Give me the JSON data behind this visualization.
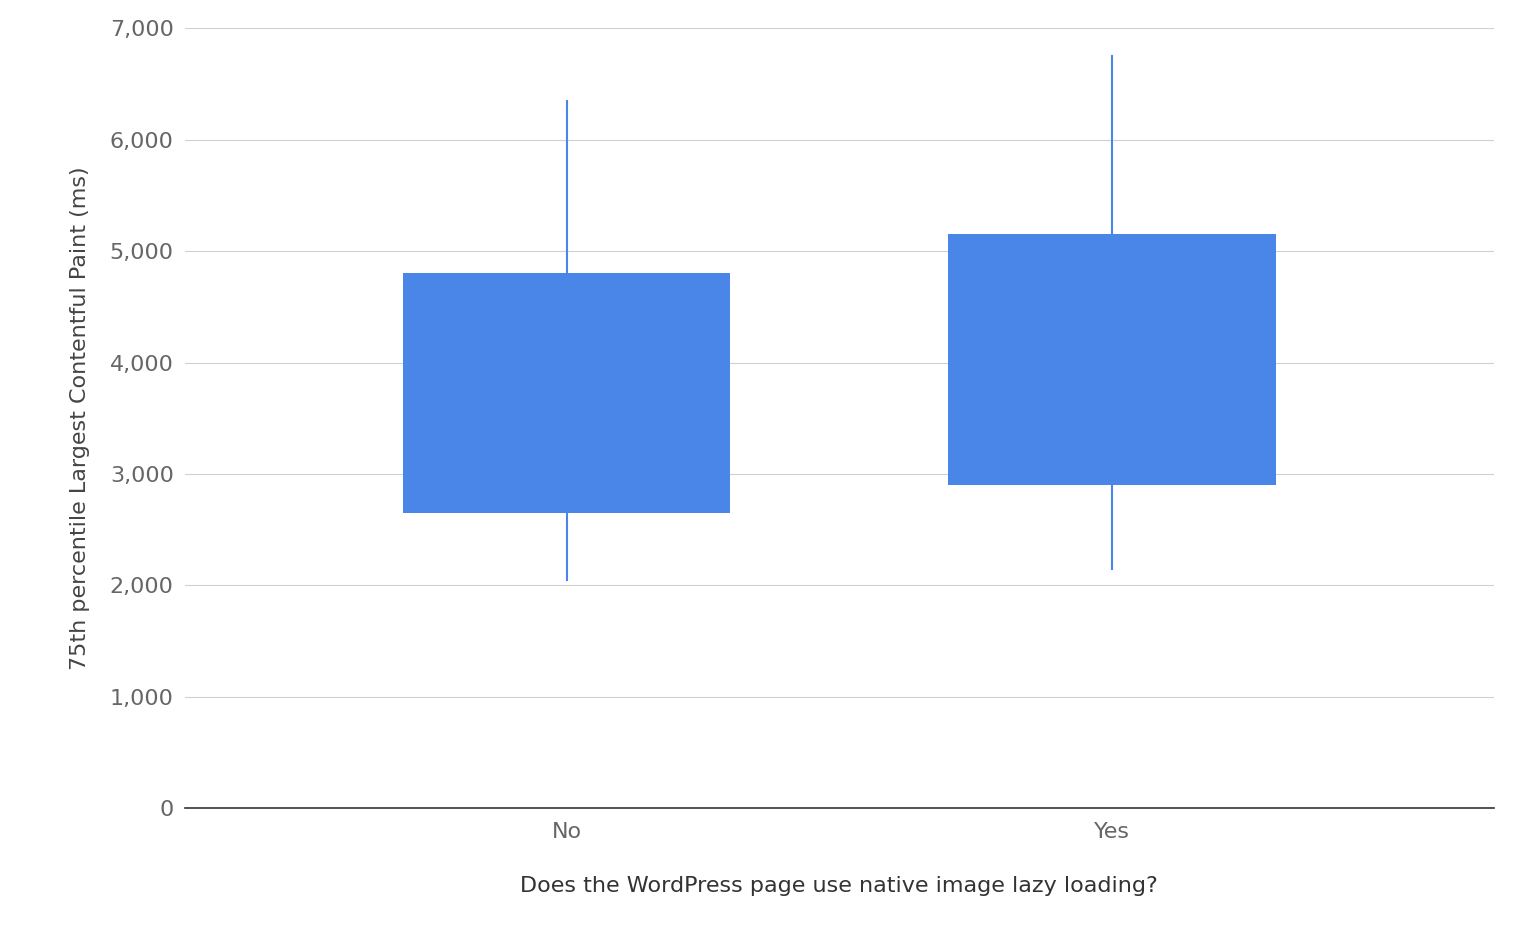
{
  "categories": [
    "No",
    "Yes"
  ],
  "p10": [
    2050,
    2150
  ],
  "p25": [
    2650,
    2900
  ],
  "p75": [
    4800,
    5150
  ],
  "p90": [
    6350,
    6750
  ],
  "box_color": "#4a86e8",
  "whisker_color": "#4a86e8",
  "ylabel": "75th percentile Largest Contentful Paint (ms)",
  "xlabel": "Does the WordPress page use native image lazy loading?",
  "ylim": [
    0,
    7000
  ],
  "yticks": [
    0,
    1000,
    2000,
    3000,
    4000,
    5000,
    6000,
    7000
  ],
  "ytick_labels": [
    "0",
    "1,000",
    "2,000",
    "3,000",
    "4,000",
    "5,000",
    "6,000",
    "7,000"
  ],
  "background_color": "#ffffff",
  "grid_color": "#d0d0d0",
  "ylabel_fontsize": 16,
  "xlabel_fontsize": 16,
  "tick_fontsize": 16
}
